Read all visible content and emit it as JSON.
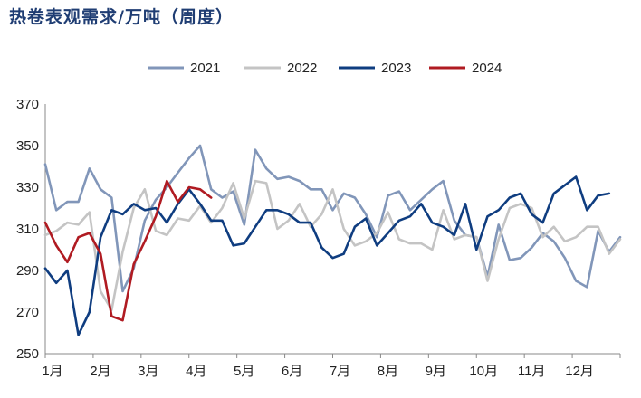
{
  "chart_data": {
    "type": "line",
    "title": "热卷表观需求/万吨（周度）",
    "xlabel": "",
    "ylabel": "",
    "ylim": [
      250,
      370
    ],
    "yticks": [
      250,
      270,
      290,
      310,
      330,
      350,
      370
    ],
    "xticks": [
      "1月",
      "2月",
      "3月",
      "4月",
      "5月",
      "6月",
      "7月",
      "8月",
      "9月",
      "10月",
      "11月",
      "12月"
    ],
    "x_range_weeks": [
      0,
      52
    ],
    "legend_position": "top-center",
    "grid": false,
    "series": [
      {
        "name": "2021",
        "color": "#8196b9",
        "values": [
          341,
          319,
          323,
          323,
          339,
          329,
          325,
          280,
          291,
          314,
          324,
          330,
          337,
          344,
          350,
          329,
          325,
          328,
          312,
          348,
          339,
          334,
          335,
          333,
          329,
          329,
          319,
          327,
          325,
          317,
          306,
          326,
          328,
          319,
          324,
          329,
          333,
          314,
          307,
          306,
          287,
          312,
          295,
          296,
          301,
          308,
          304,
          296,
          285,
          282,
          309,
          299,
          306
        ]
      },
      {
        "name": "2022",
        "color": "#c4c4c4",
        "values": [
          307,
          309,
          313,
          312,
          318,
          280,
          271,
          299,
          320,
          329,
          309,
          307,
          315,
          314,
          321,
          313,
          320,
          332,
          315,
          333,
          332,
          310,
          314,
          322,
          311,
          317,
          329,
          310,
          302,
          304,
          308,
          318,
          305,
          303,
          303,
          300,
          319,
          305,
          307,
          306,
          285,
          305,
          320,
          322,
          320,
          306,
          311,
          304,
          306,
          311,
          311,
          298,
          305
        ]
      },
      {
        "name": "2023",
        "color": "#0f3d80",
        "values": [
          291,
          284,
          290,
          259,
          270,
          306,
          319,
          317,
          322,
          319,
          320,
          313,
          322,
          329,
          322,
          314,
          314,
          302,
          303,
          311,
          319,
          319,
          317,
          313,
          313,
          301,
          296,
          298,
          311,
          315,
          302,
          308,
          314,
          316,
          322,
          313,
          311,
          307,
          322,
          300,
          316,
          319,
          325,
          327,
          317,
          313,
          327,
          331,
          335,
          319,
          326,
          327
        ]
      },
      {
        "name": "2024",
        "color": "#b01b22",
        "values": [
          313,
          302,
          294,
          306,
          308,
          298,
          268,
          266,
          293,
          304,
          316,
          333,
          323,
          330,
          329,
          325
        ]
      }
    ]
  }
}
